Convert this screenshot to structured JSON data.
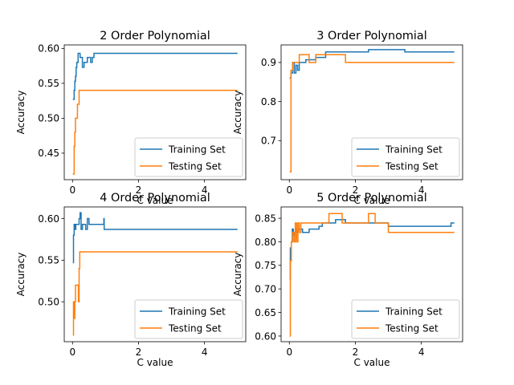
{
  "chart_data": [
    {
      "type": "line",
      "title": "2 Order Polynomial",
      "xlabel": "C value",
      "ylabel": "Accuracy",
      "xlim": [
        -0.25,
        5.25
      ],
      "ylim": [
        0.412,
        0.605
      ],
      "xticks": [
        0,
        2,
        4
      ],
      "yticks": [
        0.45,
        0.5,
        0.55,
        0.6
      ],
      "ytick_labels": [
        "0.45",
        "0.50",
        "0.55",
        "0.60"
      ],
      "legend": "lower-right",
      "series": [
        {
          "name": "Training Set",
          "color": "#1f77b4",
          "x": [
            0.01,
            0.03,
            0.05,
            0.07,
            0.09,
            0.11,
            0.13,
            0.15,
            0.17,
            0.2,
            0.23,
            0.26,
            0.3,
            0.35,
            0.4,
            0.45,
            0.5,
            0.55,
            0.6,
            0.65,
            0.7,
            5.0
          ],
          "y": [
            0.527,
            0.527,
            0.54,
            0.553,
            0.56,
            0.573,
            0.58,
            0.58,
            0.593,
            0.593,
            0.587,
            0.587,
            0.573,
            0.58,
            0.58,
            0.587,
            0.587,
            0.58,
            0.587,
            0.593,
            0.593,
            0.593
          ]
        },
        {
          "name": "Testing Set",
          "color": "#ff7f0e",
          "x": [
            0.01,
            0.03,
            0.05,
            0.07,
            0.09,
            0.11,
            0.13,
            0.15,
            0.17,
            0.2,
            5.0
          ],
          "y": [
            0.42,
            0.42,
            0.46,
            0.48,
            0.5,
            0.5,
            0.5,
            0.52,
            0.52,
            0.54,
            0.54
          ]
        }
      ]
    },
    {
      "type": "line",
      "title": "3 Order Polynomial",
      "xlabel": "C value",
      "ylabel": "Accuracy",
      "xlim": [
        -0.25,
        5.25
      ],
      "ylim": [
        0.6,
        0.945
      ],
      "xticks": [
        0,
        2,
        4
      ],
      "yticks": [
        0.7,
        0.8,
        0.9
      ],
      "ytick_labels": [
        "0.7",
        "0.8",
        "0.9"
      ],
      "legend": "lower-right",
      "series": [
        {
          "name": "Training Set",
          "color": "#1f77b4",
          "x": [
            0.01,
            0.05,
            0.1,
            0.15,
            0.2,
            0.25,
            0.3,
            0.35,
            0.4,
            0.5,
            0.6,
            0.8,
            1.0,
            1.1,
            1.5,
            2.0,
            2.4,
            2.6,
            3.0,
            3.5,
            4.0,
            5.0
          ],
          "y": [
            0.86,
            0.873,
            0.9,
            0.873,
            0.893,
            0.88,
            0.9,
            0.9,
            0.9,
            0.907,
            0.907,
            0.913,
            0.913,
            0.927,
            0.927,
            0.927,
            0.933,
            0.933,
            0.933,
            0.927,
            0.927,
            0.927
          ]
        },
        {
          "name": "Testing Set",
          "color": "#ff7f0e",
          "x": [
            0.01,
            0.05,
            0.1,
            0.2,
            0.3,
            0.5,
            0.6,
            0.7,
            0.8,
            1.1,
            1.2,
            1.6,
            1.7,
            5.0
          ],
          "y": [
            0.62,
            0.88,
            0.9,
            0.9,
            0.92,
            0.92,
            0.9,
            0.9,
            0.92,
            0.92,
            0.92,
            0.92,
            0.9,
            0.9
          ]
        }
      ]
    },
    {
      "type": "line",
      "title": "4 Order Polynomial",
      "xlabel": "C value",
      "ylabel": "Accuracy",
      "xlim": [
        -0.25,
        5.25
      ],
      "ylim": [
        0.452,
        0.614
      ],
      "xticks": [
        0,
        2,
        4
      ],
      "yticks": [
        0.5,
        0.55,
        0.6
      ],
      "ytick_labels": [
        "0.50",
        "0.55",
        "0.60"
      ],
      "legend": "lower-right",
      "series": [
        {
          "name": "Training Set",
          "color": "#1f77b4",
          "x": [
            0.01,
            0.03,
            0.05,
            0.07,
            0.1,
            0.13,
            0.16,
            0.2,
            0.23,
            0.26,
            0.3,
            0.35,
            0.4,
            0.45,
            0.5,
            0.55,
            0.6,
            0.7,
            0.8,
            0.95,
            0.96,
            5.0
          ],
          "y": [
            0.547,
            0.58,
            0.593,
            0.587,
            0.593,
            0.593,
            0.593,
            0.6,
            0.607,
            0.587,
            0.593,
            0.593,
            0.587,
            0.6,
            0.593,
            0.593,
            0.593,
            0.593,
            0.593,
            0.6,
            0.587,
            0.587
          ]
        },
        {
          "name": "Testing Set",
          "color": "#ff7f0e",
          "x": [
            0.01,
            0.03,
            0.05,
            0.07,
            0.09,
            0.12,
            0.15,
            0.18,
            0.2,
            0.22,
            5.0
          ],
          "y": [
            0.46,
            0.5,
            0.48,
            0.5,
            0.52,
            0.52,
            0.52,
            0.5,
            0.54,
            0.56,
            0.56
          ]
        }
      ]
    },
    {
      "type": "line",
      "title": "5 Order Polynomial",
      "xlabel": "C value",
      "ylabel": "Accuracy",
      "xlim": [
        -0.25,
        5.25
      ],
      "ylim": [
        0.588,
        0.874
      ],
      "xticks": [
        0,
        2,
        4
      ],
      "yticks": [
        0.6,
        0.65,
        0.7,
        0.75,
        0.8,
        0.85
      ],
      "ytick_labels": [
        "0.60",
        "0.65",
        "0.70",
        "0.75",
        "0.80",
        "0.85"
      ],
      "legend": "lower-right",
      "series": [
        {
          "name": "Training Set",
          "color": "#1f77b4",
          "x": [
            0.01,
            0.03,
            0.06,
            0.09,
            0.12,
            0.15,
            0.18,
            0.22,
            0.26,
            0.3,
            0.4,
            0.6,
            0.8,
            0.9,
            1.0,
            1.2,
            1.4,
            1.5,
            1.7,
            2.0,
            2.5,
            3.0,
            4.0,
            4.9,
            5.0
          ],
          "y": [
            0.72,
            0.787,
            0.8,
            0.827,
            0.813,
            0.82,
            0.827,
            0.82,
            0.827,
            0.827,
            0.82,
            0.827,
            0.827,
            0.833,
            0.84,
            0.84,
            0.847,
            0.847,
            0.84,
            0.84,
            0.84,
            0.833,
            0.833,
            0.84,
            0.84
          ]
        },
        {
          "name": "Testing Set",
          "color": "#ff7f0e",
          "x": [
            0.01,
            0.03,
            0.06,
            0.1,
            0.14,
            0.18,
            0.22,
            0.26,
            0.3,
            0.35,
            0.5,
            1.0,
            1.2,
            1.6,
            2.4,
            2.6,
            3.0,
            5.0
          ],
          "y": [
            0.6,
            0.76,
            0.8,
            0.82,
            0.8,
            0.84,
            0.8,
            0.84,
            0.82,
            0.84,
            0.84,
            0.84,
            0.86,
            0.84,
            0.86,
            0.84,
            0.82,
            0.82
          ]
        }
      ]
    }
  ]
}
